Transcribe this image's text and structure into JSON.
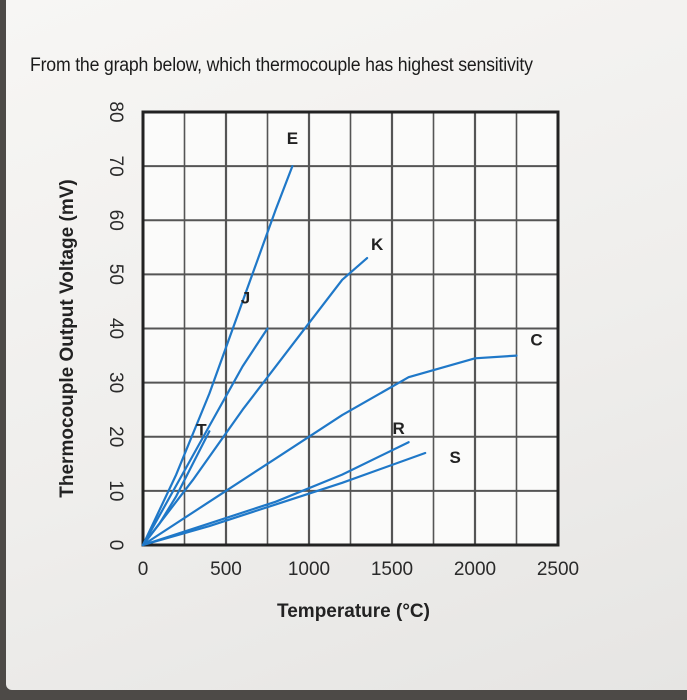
{
  "question": "From the graph below, which thermocouple has highest sensitivity",
  "colors": {
    "series": "#1f78c8",
    "grid": "#555555",
    "paper": "#f2f1ef"
  },
  "chart_data": {
    "type": "line",
    "xlabel": "Temperature (°C)",
    "ylabel": "Thermocouple Output Voltage (mV)",
    "xlim": [
      0,
      2500
    ],
    "ylim": [
      0,
      80
    ],
    "xticks": [
      "0",
      "500",
      "1000",
      "1500",
      "2000",
      "2500"
    ],
    "yticks": [
      "0",
      "10",
      "20",
      "30",
      "40",
      "50",
      "60",
      "70",
      "80"
    ],
    "grid": true,
    "series": [
      {
        "name": "E",
        "x": [
          0,
          200,
          400,
          600,
          800,
          900
        ],
        "y": [
          0,
          13,
          28,
          45,
          62,
          70
        ]
      },
      {
        "name": "J",
        "x": [
          0,
          200,
          400,
          600,
          750
        ],
        "y": [
          0,
          11,
          22,
          33,
          40
        ]
      },
      {
        "name": "K",
        "x": [
          0,
          300,
          600,
          900,
          1200,
          1350
        ],
        "y": [
          0,
          12,
          25,
          37,
          49,
          53
        ]
      },
      {
        "name": "T",
        "x": [
          0,
          100,
          200,
          300,
          400
        ],
        "y": [
          0,
          4,
          9,
          15,
          21
        ]
      },
      {
        "name": "R",
        "x": [
          0,
          400,
          800,
          1200,
          1600
        ],
        "y": [
          0,
          4,
          8,
          13,
          19
        ]
      },
      {
        "name": "S",
        "x": [
          0,
          400,
          800,
          1200,
          1700
        ],
        "y": [
          0,
          3.5,
          7.5,
          11.5,
          17
        ]
      },
      {
        "name": "C",
        "x": [
          0,
          400,
          800,
          1200,
          1600,
          2000,
          2250
        ],
        "y": [
          0,
          8,
          16,
          24,
          31,
          34.5,
          35
        ]
      }
    ]
  }
}
